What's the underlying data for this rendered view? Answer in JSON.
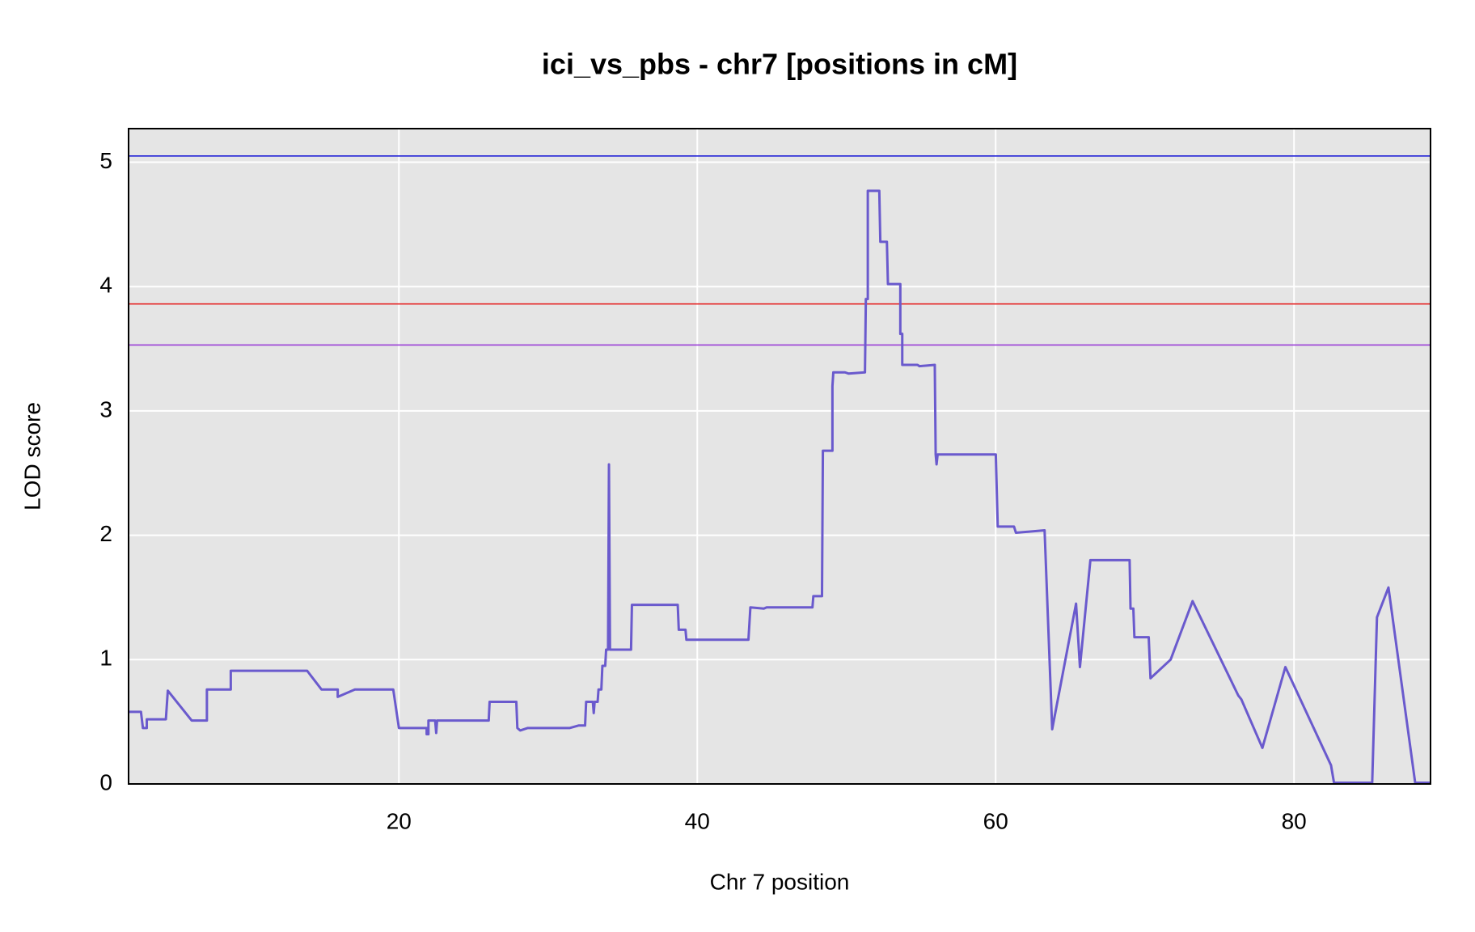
{
  "chart_data": {
    "type": "line",
    "title": "ici_vs_pbs - chr7 [positions in cM]",
    "x_label": "Chr 7 position",
    "y_label": "LOD score",
    "xlim": [
      1.88,
      89.15
    ],
    "ylim": [
      0,
      5.27
    ],
    "xticks": [
      20,
      40,
      60,
      80
    ],
    "yticks": [
      0,
      1,
      2,
      3,
      4,
      5
    ],
    "grid": true,
    "color": "#6a5acd",
    "hlines": [
      {
        "value": 5.05,
        "color": "#1c1cd6"
      },
      {
        "value": 3.86,
        "color": "#e52a2a"
      },
      {
        "value": 3.53,
        "color": "#9a3ed6"
      }
    ],
    "x": [
      1.88,
      2.71,
      2.84,
      3.1,
      3.1,
      4.38,
      4.51,
      6.11,
      7.13,
      7.13,
      8.73,
      8.73,
      13.85,
      14.81,
      15.9,
      15.9,
      17.05,
      19.62,
      20.0,
      21.86,
      21.86,
      21.98,
      21.98,
      22.43,
      22.5,
      22.56,
      26.02,
      26.08,
      27.87,
      27.94,
      28.13,
      28.64,
      31.46,
      32.04,
      32.48,
      32.55,
      33.0,
      33.06,
      33.12,
      33.32,
      33.38,
      33.57,
      33.64,
      33.83,
      33.89,
      34.02,
      34.08,
      34.15,
      35.56,
      35.62,
      38.69,
      38.76,
      39.21,
      39.27,
      43.43,
      43.56,
      44.46,
      44.65,
      47.72,
      47.78,
      48.36,
      48.42,
      49.06,
      49.06,
      49.12,
      49.9,
      50.15,
      51.24,
      51.3,
      51.43,
      51.43,
      52.2,
      52.27,
      52.71,
      52.78,
      53.61,
      53.61,
      53.74,
      53.74,
      54.76,
      54.89,
      55.92,
      55.98,
      56.04,
      56.11,
      60.01,
      60.14,
      61.23,
      61.36,
      63.28,
      63.79,
      65.39,
      65.65,
      66.35,
      68.98,
      69.04,
      69.23,
      69.3,
      70.26,
      70.38,
      71.73,
      73.2,
      76.27,
      76.47,
      77.88,
      79.42,
      82.48,
      82.68,
      85.24,
      85.56,
      86.33,
      88.12,
      89.15
    ],
    "values": [
      0.58,
      0.58,
      0.45,
      0.45,
      0.52,
      0.52,
      0.75,
      0.51,
      0.51,
      0.76,
      0.76,
      0.91,
      0.91,
      0.76,
      0.76,
      0.7,
      0.76,
      0.76,
      0.45,
      0.45,
      0.4,
      0.4,
      0.51,
      0.51,
      0.41,
      0.51,
      0.51,
      0.66,
      0.66,
      0.45,
      0.43,
      0.45,
      0.45,
      0.47,
      0.47,
      0.66,
      0.66,
      0.57,
      0.66,
      0.66,
      0.76,
      0.76,
      0.95,
      0.95,
      1.08,
      1.08,
      2.57,
      1.08,
      1.08,
      1.44,
      1.44,
      1.24,
      1.24,
      1.16,
      1.16,
      1.42,
      1.41,
      1.42,
      1.42,
      1.51,
      1.51,
      2.68,
      2.68,
      3.2,
      3.31,
      3.31,
      3.3,
      3.31,
      3.9,
      3.9,
      4.77,
      4.77,
      4.36,
      4.36,
      4.02,
      4.02,
      3.62,
      3.62,
      3.37,
      3.37,
      3.36,
      3.37,
      2.65,
      2.57,
      2.65,
      2.65,
      2.07,
      2.07,
      2.02,
      2.04,
      0.44,
      1.45,
      0.94,
      1.8,
      1.8,
      1.41,
      1.41,
      1.18,
      1.18,
      0.85,
      1.0,
      1.47,
      0.71,
      0.68,
      0.29,
      0.94,
      0.15,
      0.01,
      0.01,
      1.34,
      1.58,
      0.01,
      0.01
    ]
  }
}
